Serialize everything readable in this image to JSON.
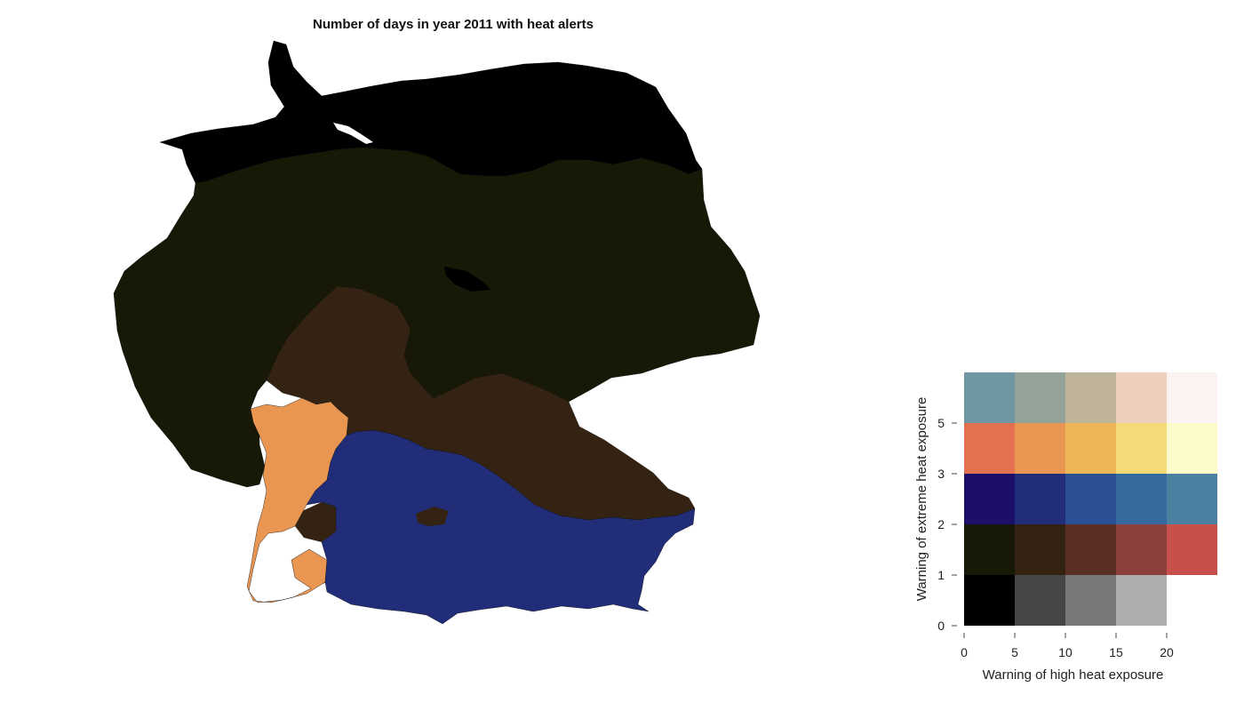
{
  "title": "Number of days in year 2011 with heat alerts",
  "legend": {
    "x_title": "Warning of high heat exposure",
    "y_title": "Warning of extreme heat exposure",
    "x_ticks": [
      "0",
      "5",
      "10",
      "15",
      "20"
    ],
    "y_ticks": [
      "0",
      "1",
      "2",
      "3",
      "5"
    ],
    "grid": [
      [
        "#000000",
        "#464646",
        "#787878",
        "#adadad",
        null
      ],
      [
        "#181806",
        "#342312",
        "#5a2e23",
        "#8c403c",
        "#c8504a"
      ],
      [
        "#1c0f68",
        "#222d7a",
        "#2a4f92",
        "#376a9e",
        "#4c80a0"
      ],
      [
        "#e3704e",
        "#e99652",
        "#efb657",
        "#f5db78",
        "#fefbcb"
      ],
      [
        "#6e96a3",
        "#94a39a",
        "#bfb39a",
        "#eccfbc",
        "#fcf2f2"
      ]
    ]
  },
  "map": {
    "regions": [
      {
        "name": "north-coast",
        "color": "#000000"
      },
      {
        "name": "central-north",
        "color": "#181806"
      },
      {
        "name": "hesse-franconia-east-bavaria",
        "color": "#342312"
      },
      {
        "name": "rhineland-palatinate-west-bw",
        "color": "#e99652"
      },
      {
        "name": "baden-wuerttemberg-bavaria-south",
        "color": "#222d7a"
      }
    ]
  }
}
